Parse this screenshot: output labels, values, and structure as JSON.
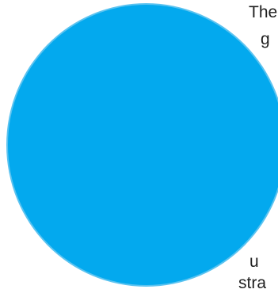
{
  "shape": {
    "fill": "#03a9ee",
    "stroke": "#5bc3f0"
  },
  "text_fragments": [
    "The",
    "g",
    "u",
    "stra"
  ]
}
